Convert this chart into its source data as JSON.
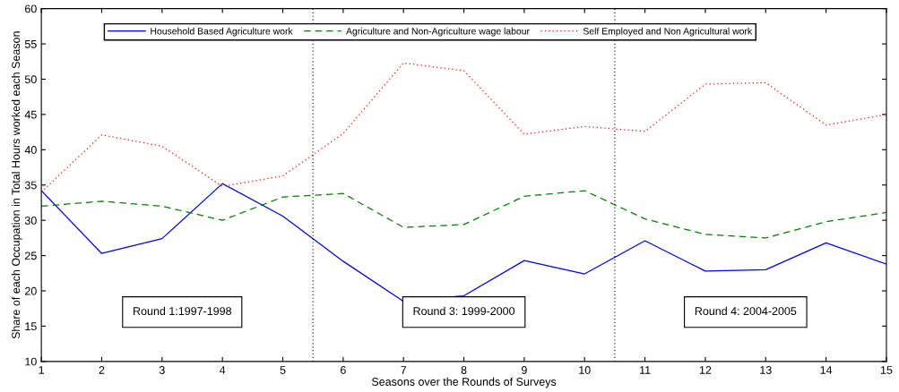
{
  "chart_data": {
    "type": "line",
    "xlabel": "Seasons over the Rounds of Surveys",
    "ylabel": "Share of each Occupation in Total Hours worked each Season",
    "x": [
      1,
      2,
      3,
      4,
      5,
      6,
      7,
      8,
      9,
      10,
      11,
      12,
      13,
      14,
      15
    ],
    "series": [
      {
        "name": "Household Based Agriculture work",
        "color": "#0000ff",
        "line_style": "solid",
        "values": [
          34.2,
          25.3,
          27.4,
          35.2,
          30.6,
          24.2,
          18.5,
          19.3,
          24.3,
          22.4,
          27.1,
          22.8,
          23.0,
          26.8,
          23.8
        ]
      },
      {
        "name": "Agriculture and Non-Agriculture wage labour",
        "color": "#008000",
        "line_style": "dashed",
        "values": [
          32.0,
          32.7,
          32.0,
          30.0,
          33.3,
          33.8,
          29.0,
          29.4,
          33.4,
          34.2,
          30.2,
          28.0,
          27.5,
          29.8,
          31.1
        ]
      },
      {
        "name": "Self Employed and Non Agricultural work",
        "color": "#ff0000",
        "line_style": "dotted",
        "values": [
          34.0,
          42.1,
          40.5,
          34.8,
          36.3,
          42.3,
          52.3,
          51.2,
          42.2,
          43.3,
          42.6,
          49.3,
          49.5,
          43.5,
          45.0
        ]
      }
    ],
    "xlim": [
      1,
      15
    ],
    "xticks": [
      1,
      2,
      3,
      4,
      5,
      6,
      7,
      8,
      9,
      10,
      11,
      12,
      13,
      14,
      15
    ],
    "ylim": [
      10,
      60
    ],
    "yticks": [
      10,
      15,
      20,
      25,
      30,
      35,
      40,
      45,
      50,
      55,
      60
    ],
    "ref_lines": [
      {
        "axis": "x",
        "value": 5.5,
        "color": "#000000",
        "line_style": "dotted"
      },
      {
        "axis": "x",
        "value": 10.5,
        "color": "#000000",
        "line_style": "dotted"
      }
    ],
    "annotations": [
      "Round 1:1997-1998",
      "Round 3: 1999-2000",
      "Round 4: 2004-2005"
    ],
    "legend": "top",
    "grid": false
  }
}
